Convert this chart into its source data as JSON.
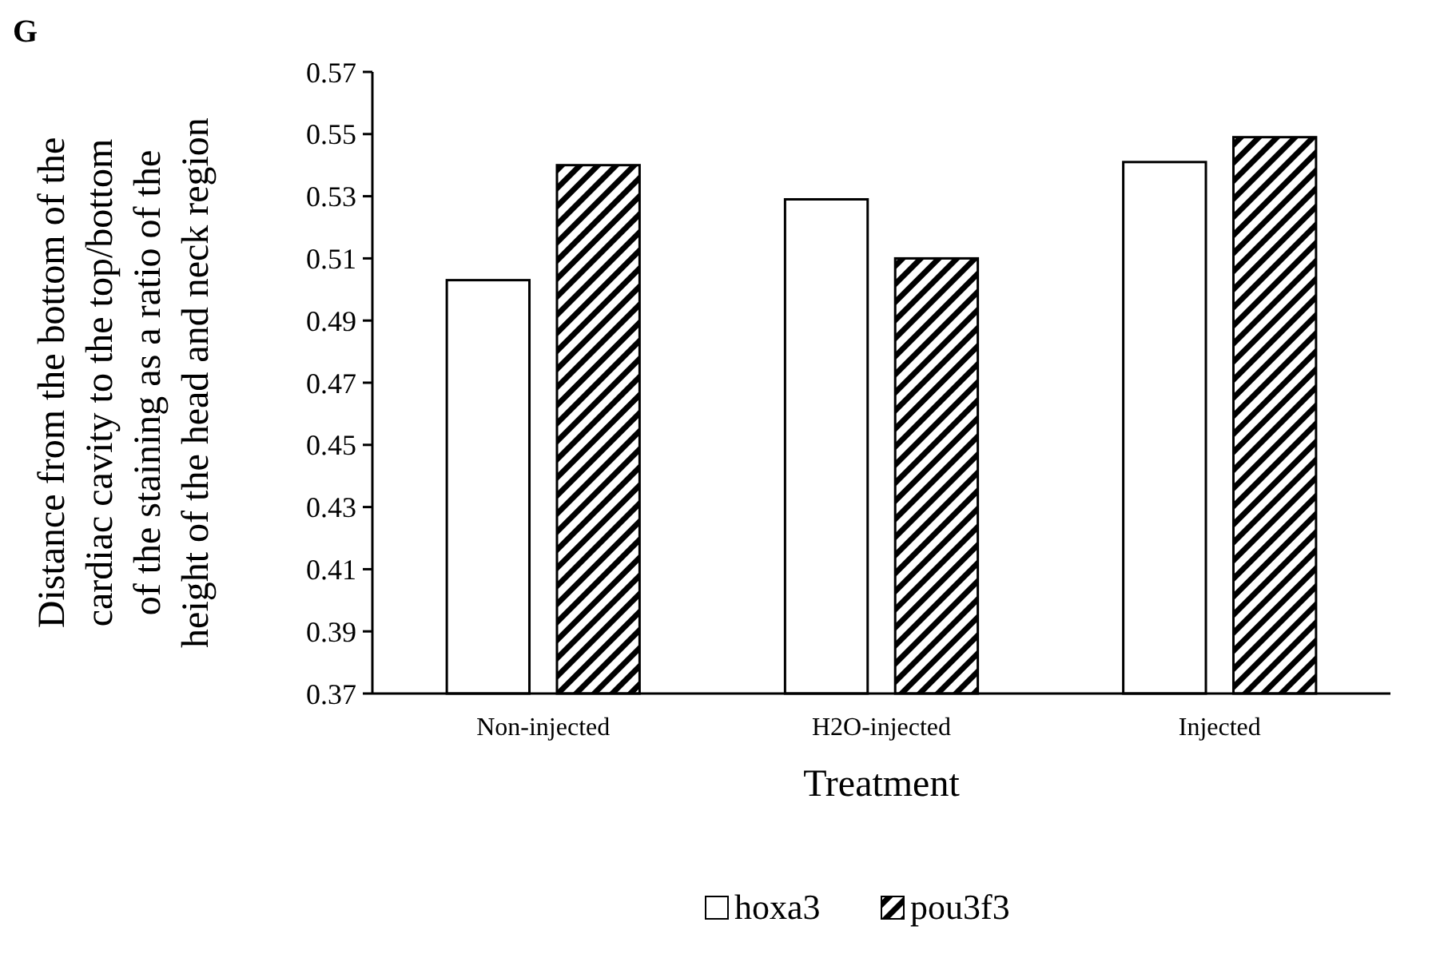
{
  "chart_data": {
    "type": "bar",
    "title": "G",
    "xlabel": "Treatment",
    "ylabel": "Distance from the bottom of the cardiac cavity to the top/bottom of the staining as a ratio of the height of the head and neck region",
    "categories": [
      "Non-injected",
      "H2O-injected",
      "Injected"
    ],
    "series": [
      {
        "name": "hoxa3",
        "color": "#ffffff",
        "values": [
          0.503,
          0.529,
          0.541
        ]
      },
      {
        "name": "pou3f3",
        "color": "#000000",
        "values": [
          0.54,
          0.51,
          0.549
        ]
      }
    ],
    "ylim": [
      0.37,
      0.57
    ],
    "yticks": [
      0.37,
      0.39,
      0.41,
      0.43,
      0.45,
      0.47,
      0.49,
      0.51,
      0.53,
      0.55,
      0.57
    ],
    "grid": false,
    "legend": "bottom"
  }
}
